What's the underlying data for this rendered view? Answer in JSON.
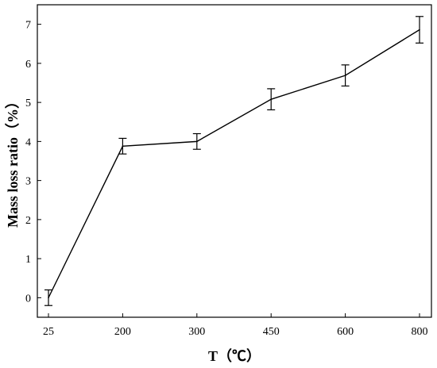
{
  "chart_data": {
    "type": "line",
    "categories": [
      "25",
      "200",
      "300",
      "450",
      "600",
      "800"
    ],
    "values": [
      0,
      3.88,
      4.0,
      5.08,
      5.69,
      6.86
    ],
    "errors": [
      0.2,
      0.2,
      0.2,
      0.27,
      0.27,
      0.34
    ],
    "xlabel": "T（℃）",
    "ylabel": "Mass loss ratio（%）",
    "ylim": [
      -0.5,
      7.5
    ],
    "yticks": [
      "0",
      "1",
      "2",
      "3",
      "4",
      "5",
      "6",
      "7"
    ],
    "grid": false,
    "line_color": "#000000"
  }
}
